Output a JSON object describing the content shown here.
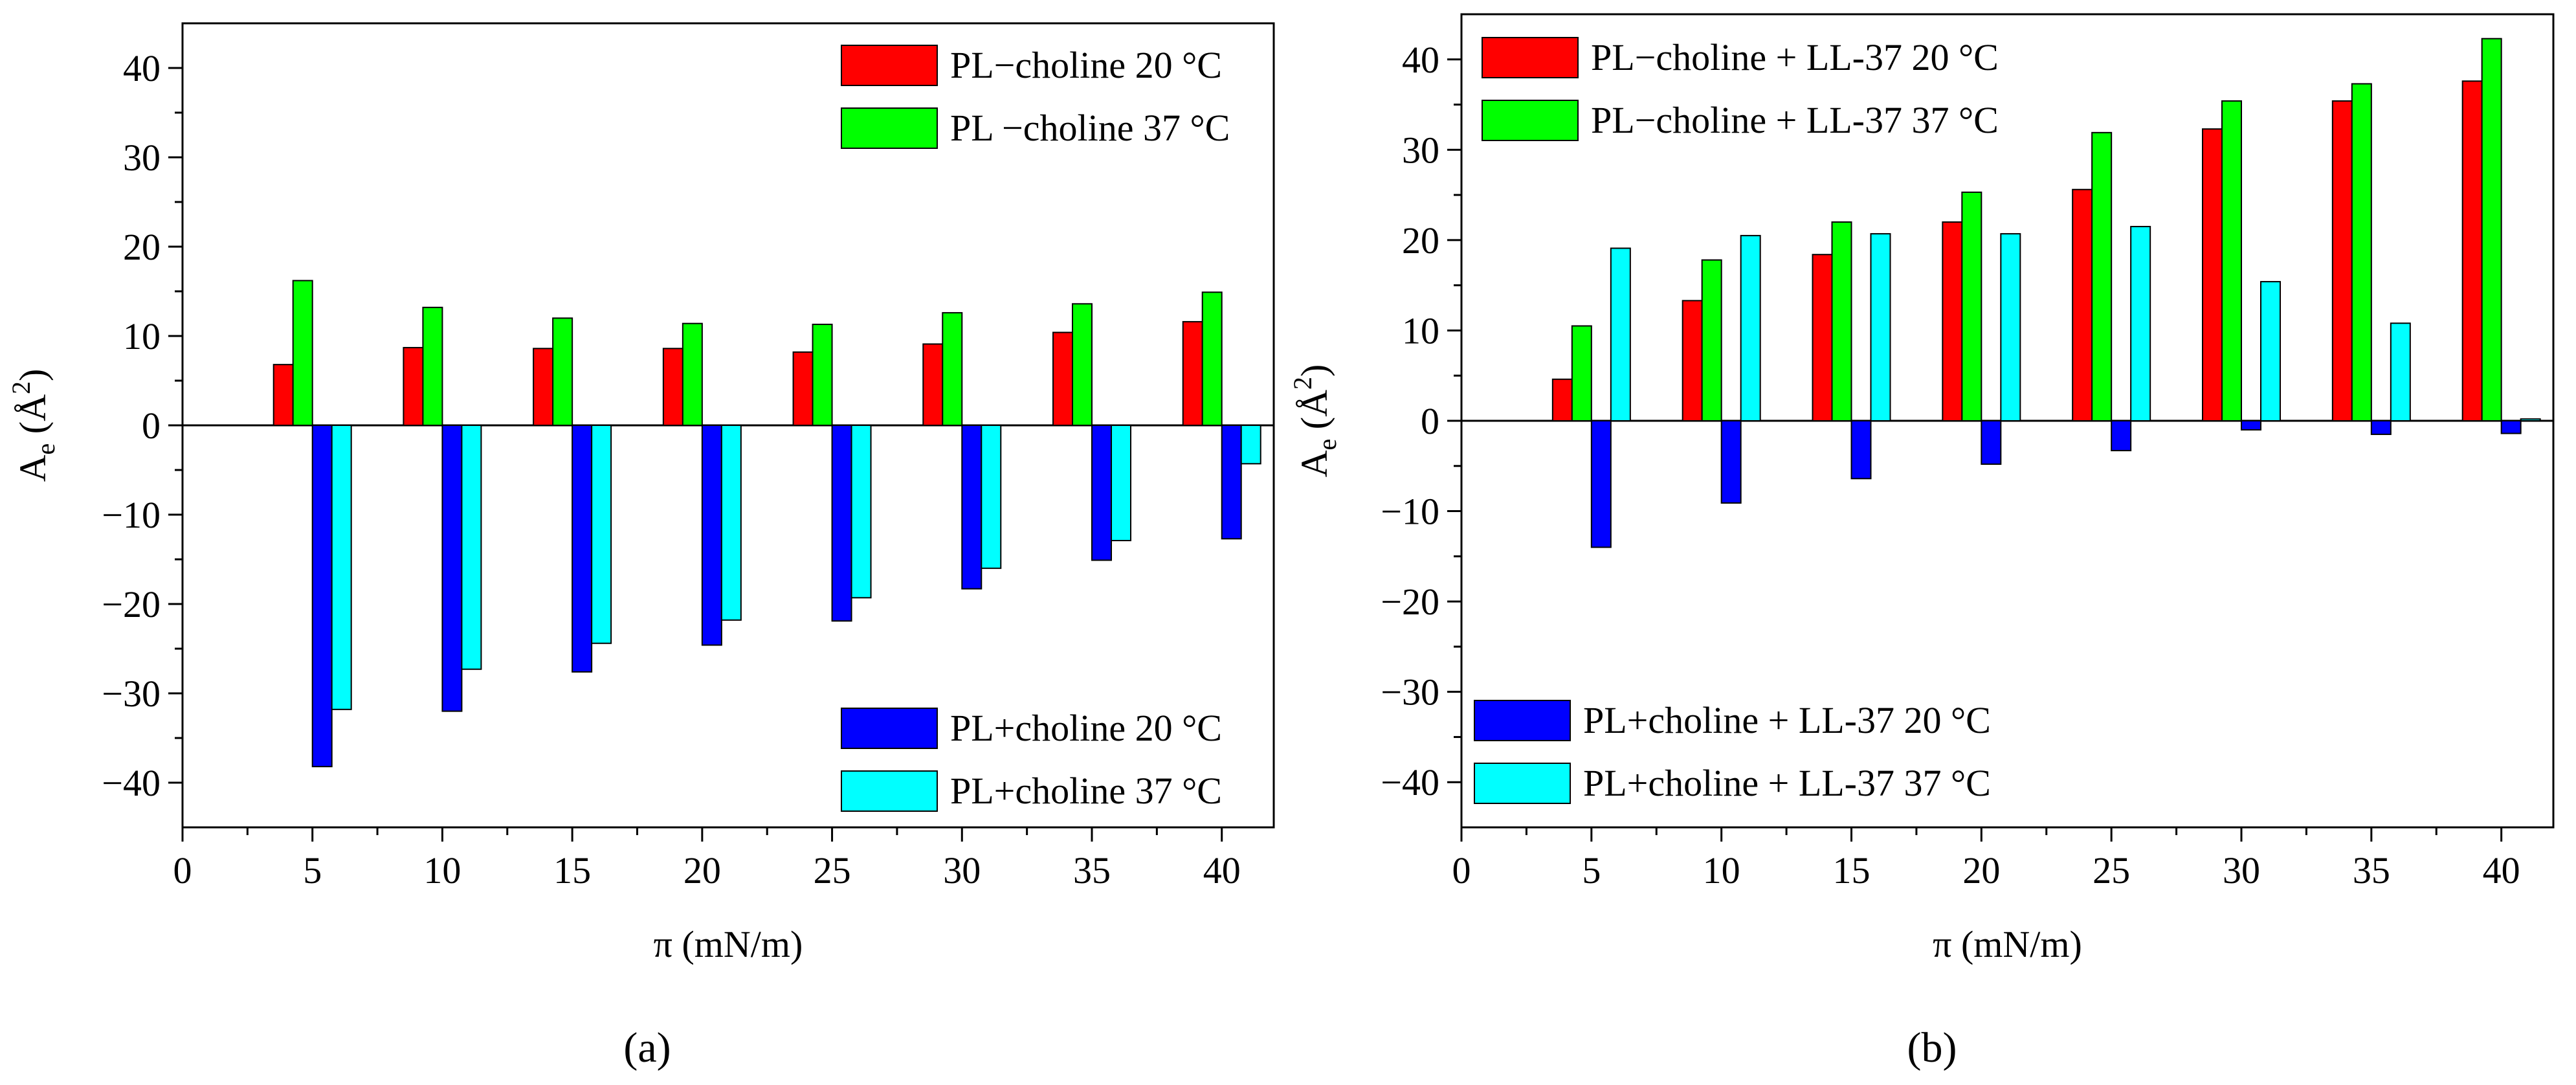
{
  "figure_labels": {
    "panel_a": "(a)",
    "panel_b": "(b)"
  },
  "colors": {
    "red": "#ff0000",
    "green": "#00ff00",
    "blue": "#0000ff",
    "cyan": "#00ffff",
    "axis": "#000000"
  },
  "chart_data": [
    {
      "type": "bar",
      "panel": "(a)",
      "xlabel": "π (mN/m)",
      "ylabel": {
        "main": "A",
        "sub": "e",
        "unit_open": " (Å",
        "unit_sup": "2",
        "unit_close": ")"
      },
      "xlim": [
        0,
        42
      ],
      "ylim": [
        -45,
        45
      ],
      "x": [
        5,
        10,
        15,
        20,
        25,
        30,
        35,
        40
      ],
      "x_ticks": [
        0,
        5,
        10,
        15,
        20,
        25,
        30,
        35,
        40
      ],
      "y_ticks": [
        -40,
        -30,
        -20,
        -10,
        0,
        10,
        20,
        30,
        40
      ],
      "y_tick_labels": [
        "−40",
        "−30",
        "−20",
        "−10",
        "0",
        "10",
        "20",
        "30",
        "40"
      ],
      "series": [
        {
          "name": "PL−choline 20 °C",
          "color": "#ff0000",
          "values": [
            6.8,
            8.7,
            8.6,
            8.6,
            8.2,
            9.1,
            10.4,
            11.6
          ]
        },
        {
          "name": "PL −choline 37 °C",
          "color": "#00ff00",
          "values": [
            16.2,
            13.2,
            12.0,
            11.4,
            11.3,
            12.6,
            13.6,
            14.9
          ]
        },
        {
          "name": "PL+choline 20 °C",
          "color": "#0000ff",
          "values": [
            -38.2,
            -32.0,
            -27.6,
            -24.6,
            -21.9,
            -18.3,
            -15.1,
            -12.7
          ]
        },
        {
          "name": "PL+choline 37 °C",
          "color": "#00ffff",
          "values": [
            -31.8,
            -27.3,
            -24.4,
            -21.8,
            -19.3,
            -16.0,
            -12.9,
            -4.3
          ]
        }
      ],
      "legend": [
        {
          "label": "PL−choline 20 °C",
          "color": "#ff0000",
          "placement": "top-right"
        },
        {
          "label": "PL −choline 37 °C",
          "color": "#00ff00",
          "placement": "top-right"
        },
        {
          "label": "PL+choline 20 °C",
          "color": "#0000ff",
          "placement": "bottom-right"
        },
        {
          "label": "PL+choline 37 °C",
          "color": "#00ffff",
          "placement": "bottom-right"
        }
      ]
    },
    {
      "type": "bar",
      "panel": "(b)",
      "xlabel": "π (mN/m)",
      "ylabel": {
        "main": "A",
        "sub": "e",
        "unit_open": " (Å",
        "unit_sup": "2",
        "unit_close": ")"
      },
      "xlim": [
        0,
        42
      ],
      "ylim": [
        -45,
        45
      ],
      "x": [
        5,
        10,
        15,
        20,
        25,
        30,
        35,
        40
      ],
      "x_ticks": [
        0,
        5,
        10,
        15,
        20,
        25,
        30,
        35,
        40
      ],
      "y_ticks": [
        -40,
        -30,
        -20,
        -10,
        0,
        10,
        20,
        30,
        40
      ],
      "y_tick_labels": [
        "−40",
        "−30",
        "−20",
        "−10",
        "0",
        "10",
        "20",
        "30",
        "40"
      ],
      "series": [
        {
          "name": "PL−choline + LL-37 20 °C",
          "color": "#ff0000",
          "values": [
            4.6,
            13.3,
            18.4,
            22.0,
            25.6,
            32.3,
            35.4,
            37.6
          ]
        },
        {
          "name": "PL−choline + LL-37 37 °C",
          "color": "#00ff00",
          "values": [
            10.5,
            17.8,
            22.0,
            25.3,
            31.9,
            35.4,
            37.3,
            42.3
          ]
        },
        {
          "name": "PL+choline + LL-37 20 °C",
          "color": "#0000ff",
          "values": [
            -14.0,
            -9.1,
            -6.4,
            -4.8,
            -3.3,
            -1.0,
            -1.5,
            -1.4
          ]
        },
        {
          "name": "PL+choline + LL-37 37 °C",
          "color": "#00ffff",
          "values": [
            19.1,
            20.5,
            20.7,
            20.7,
            21.5,
            15.4,
            10.8,
            0.2
          ]
        }
      ],
      "legend": [
        {
          "label": "PL−choline + LL-37 20 °C",
          "color": "#ff0000",
          "placement": "top-left"
        },
        {
          "label": "PL−choline + LL-37 37 °C",
          "color": "#00ff00",
          "placement": "top-left"
        },
        {
          "label": "PL+choline + LL-37 20 °C",
          "color": "#0000ff",
          "placement": "bottom-left"
        },
        {
          "label": "PL+choline + LL-37 37 °C",
          "color": "#00ffff",
          "placement": "bottom-left"
        }
      ]
    }
  ]
}
